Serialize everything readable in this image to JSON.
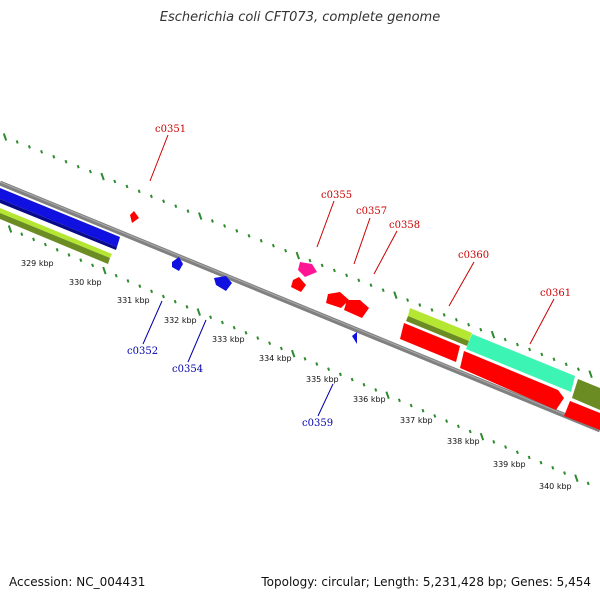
{
  "title": "Escherichia coli CFT073, complete genome",
  "accession": "Accession: NC_004431",
  "summary": "Topology: circular; Length: 5,231,428 bp; Genes: 5,454",
  "colors": {
    "backbone": "#808080",
    "tick": "#2e8b2e",
    "forward_label": "#cc0000",
    "reverse_label": "#0000aa"
  },
  "kbp_labels": [
    "329 kbp",
    "330 kbp",
    "331 kbp",
    "332 kbp",
    "333 kbp",
    "334 kbp",
    "335 kbp",
    "336 kbp",
    "337 kbp",
    "338 kbp",
    "339 kbp",
    "340 kbp"
  ],
  "gene_labels": [
    {
      "text": "c0351",
      "strand": "forward"
    },
    {
      "text": "c0355",
      "strand": "forward"
    },
    {
      "text": "c0357",
      "strand": "forward"
    },
    {
      "text": "c0358",
      "strand": "forward"
    },
    {
      "text": "c0360",
      "strand": "forward"
    },
    {
      "text": "c0361",
      "strand": "forward"
    },
    {
      "text": "c0352",
      "strand": "reverse"
    },
    {
      "text": "c0354",
      "strand": "reverse"
    },
    {
      "text": "c0359",
      "strand": "reverse"
    }
  ],
  "features": [
    {
      "name": "blue-cds-arrow",
      "color": "#1010e0",
      "type": "CDS"
    },
    {
      "name": "lime-gene-band",
      "color": "#b4e632",
      "type": "gene"
    },
    {
      "name": "olive-gene-band",
      "color": "#6b8c23",
      "type": "gene"
    },
    {
      "name": "red-small-arrow",
      "color": "#ff0000",
      "type": "CDS"
    },
    {
      "name": "blue-small-arrow-1",
      "color": "#1010e0",
      "type": "CDS"
    },
    {
      "name": "blue-small-arrow-2",
      "color": "#1010e0",
      "type": "CDS"
    },
    {
      "name": "magenta-feature",
      "color": "#ff1493",
      "type": "feature"
    },
    {
      "name": "red-arrow-c0357",
      "color": "#ff0000",
      "type": "CDS"
    },
    {
      "name": "red-arrow-c0358",
      "color": "#ff0000",
      "type": "CDS"
    },
    {
      "name": "red-arrow-c0358b",
      "color": "#ff0000",
      "type": "CDS"
    },
    {
      "name": "blue-small-arrow-c0359",
      "color": "#1010e0",
      "type": "CDS"
    },
    {
      "name": "lime-band-c0360",
      "color": "#b4e632",
      "type": "gene"
    },
    {
      "name": "teal-band-c0361",
      "color": "#3cf5b4",
      "type": "gene"
    },
    {
      "name": "olive-band-right",
      "color": "#6b8c23",
      "type": "gene"
    },
    {
      "name": "red-band-c0360",
      "color": "#ff0000",
      "type": "CDS"
    },
    {
      "name": "red-band-c0361",
      "color": "#ff0000",
      "type": "CDS"
    },
    {
      "name": "red-band-right",
      "color": "#ff0000",
      "type": "CDS"
    }
  ]
}
